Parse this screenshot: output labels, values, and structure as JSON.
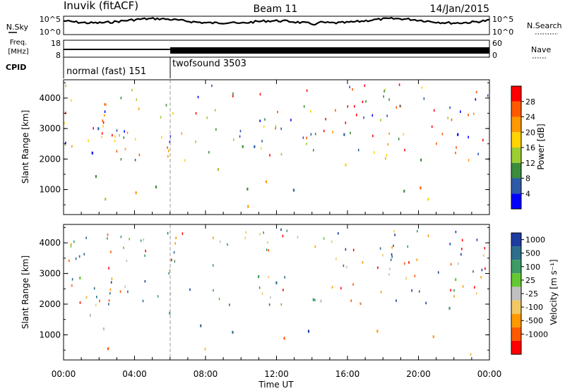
{
  "header": {
    "station": "Inuvik (fitACF)",
    "beam": "Beam 11",
    "date": "14/Jan/2015"
  },
  "top_panels": {
    "nsky_label": "N.Sky",
    "nsky_ticks": [
      "10^5",
      "10^0"
    ],
    "nsearch_label": "N.Search",
    "nsearch_ticks": [
      "10^5",
      "10^0"
    ],
    "freq_label_1": "Freq.",
    "freq_label_2": "[MHz]",
    "freq_ticks": [
      "18",
      "8"
    ],
    "nave_label": "Nave",
    "nave_ticks": [
      "60",
      "0"
    ],
    "cpid_label": "CPID",
    "cpid_modes": [
      {
        "name": "normal (fast) 151",
        "start_hour": 0,
        "end_hour": 6
      },
      {
        "name": "twofsound 3503",
        "start_hour": 6,
        "end_hour": 24
      }
    ]
  },
  "chart_data": [
    {
      "type": "heatmap",
      "id": "power",
      "ylabel": "Slant Range [km]",
      "y_ticks": [
        1000,
        2000,
        3000,
        4000
      ],
      "ylim": [
        180,
        4600
      ],
      "xlim": [
        0,
        24
      ],
      "colorbar": {
        "label": "Power [dB]",
        "ticks": [
          "28",
          "24",
          "20",
          "16",
          "12",
          "8",
          "4"
        ],
        "colors": [
          "#ff0000",
          "#ff5a00",
          "#ff9900",
          "#ffd400",
          "#9ccd32",
          "#3c8c3c",
          "#2e5aa8",
          "#0000ff"
        ]
      }
    },
    {
      "type": "heatmap",
      "id": "velocity",
      "ylabel": "Slant Range [km]",
      "y_ticks": [
        1000,
        2000,
        3000,
        4000
      ],
      "ylim": [
        180,
        4600
      ],
      "xlim": [
        0,
        24
      ],
      "colorbar": {
        "label": "Velocity [m s⁻¹]",
        "ticks": [
          "1000",
          "500",
          "100",
          "25",
          "-25",
          "-100",
          "-500",
          "-1000"
        ],
        "colors": [
          "#1e3ca0",
          "#2c6e8c",
          "#3c9c64",
          "#64c832",
          "#c0c0c0",
          "#f0c864",
          "#ff9900",
          "#ff5a00",
          "#ff0000"
        ]
      }
    }
  ],
  "x_axis": {
    "ticks": [
      "00:00",
      "04:00",
      "08:00",
      "12:00",
      "16:00",
      "20:00",
      "00:00"
    ],
    "tick_hours": [
      0,
      4,
      8,
      12,
      16,
      20,
      24
    ],
    "label": "Time UT"
  }
}
